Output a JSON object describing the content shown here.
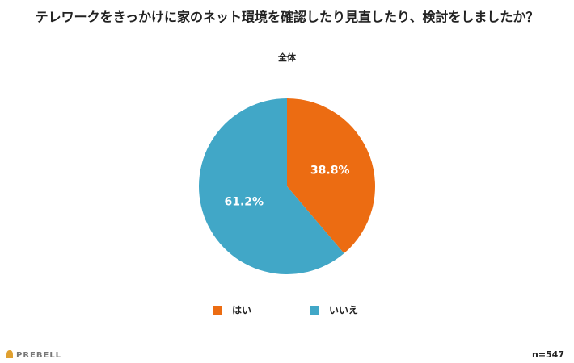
{
  "chart_data": {
    "type": "pie",
    "title": "テレワークをきっかけに家のネット環境を確認したり見直したり、検討をしましたか？",
    "subtitle": "全体",
    "categories": [
      "はい",
      "いいえ"
    ],
    "values": [
      38.8,
      61.2
    ],
    "value_labels": [
      "38.8%",
      "61.2%"
    ],
    "colors": [
      "#ec6c12",
      "#41a7c7"
    ],
    "legend": "bottom",
    "sample_note": "n=547",
    "brand": "PREBELL"
  }
}
